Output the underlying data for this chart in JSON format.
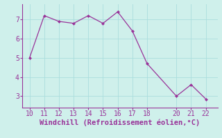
{
  "x": [
    10,
    11,
    12,
    13,
    14,
    15,
    16,
    17,
    18,
    20,
    21,
    22
  ],
  "y": [
    5.0,
    7.2,
    6.9,
    6.8,
    7.2,
    6.8,
    7.4,
    6.4,
    4.7,
    3.0,
    3.6,
    2.85
  ],
  "line_color": "#993399",
  "marker": "D",
  "marker_size": 2,
  "bg_color": "#cff0eb",
  "grid_color": "#aadddd",
  "xlabel": "Windchill (Refroidissement éolien,°C)",
  "xlabel_color": "#993399",
  "xlabel_fontsize": 7.5,
  "tick_color": "#993399",
  "tick_fontsize": 7,
  "xticks": [
    10,
    11,
    12,
    13,
    14,
    15,
    16,
    17,
    18,
    20,
    21,
    22
  ],
  "yticks": [
    3,
    4,
    5,
    6,
    7
  ],
  "xlim": [
    9.5,
    22.8
  ],
  "ylim": [
    2.4,
    7.8
  ]
}
